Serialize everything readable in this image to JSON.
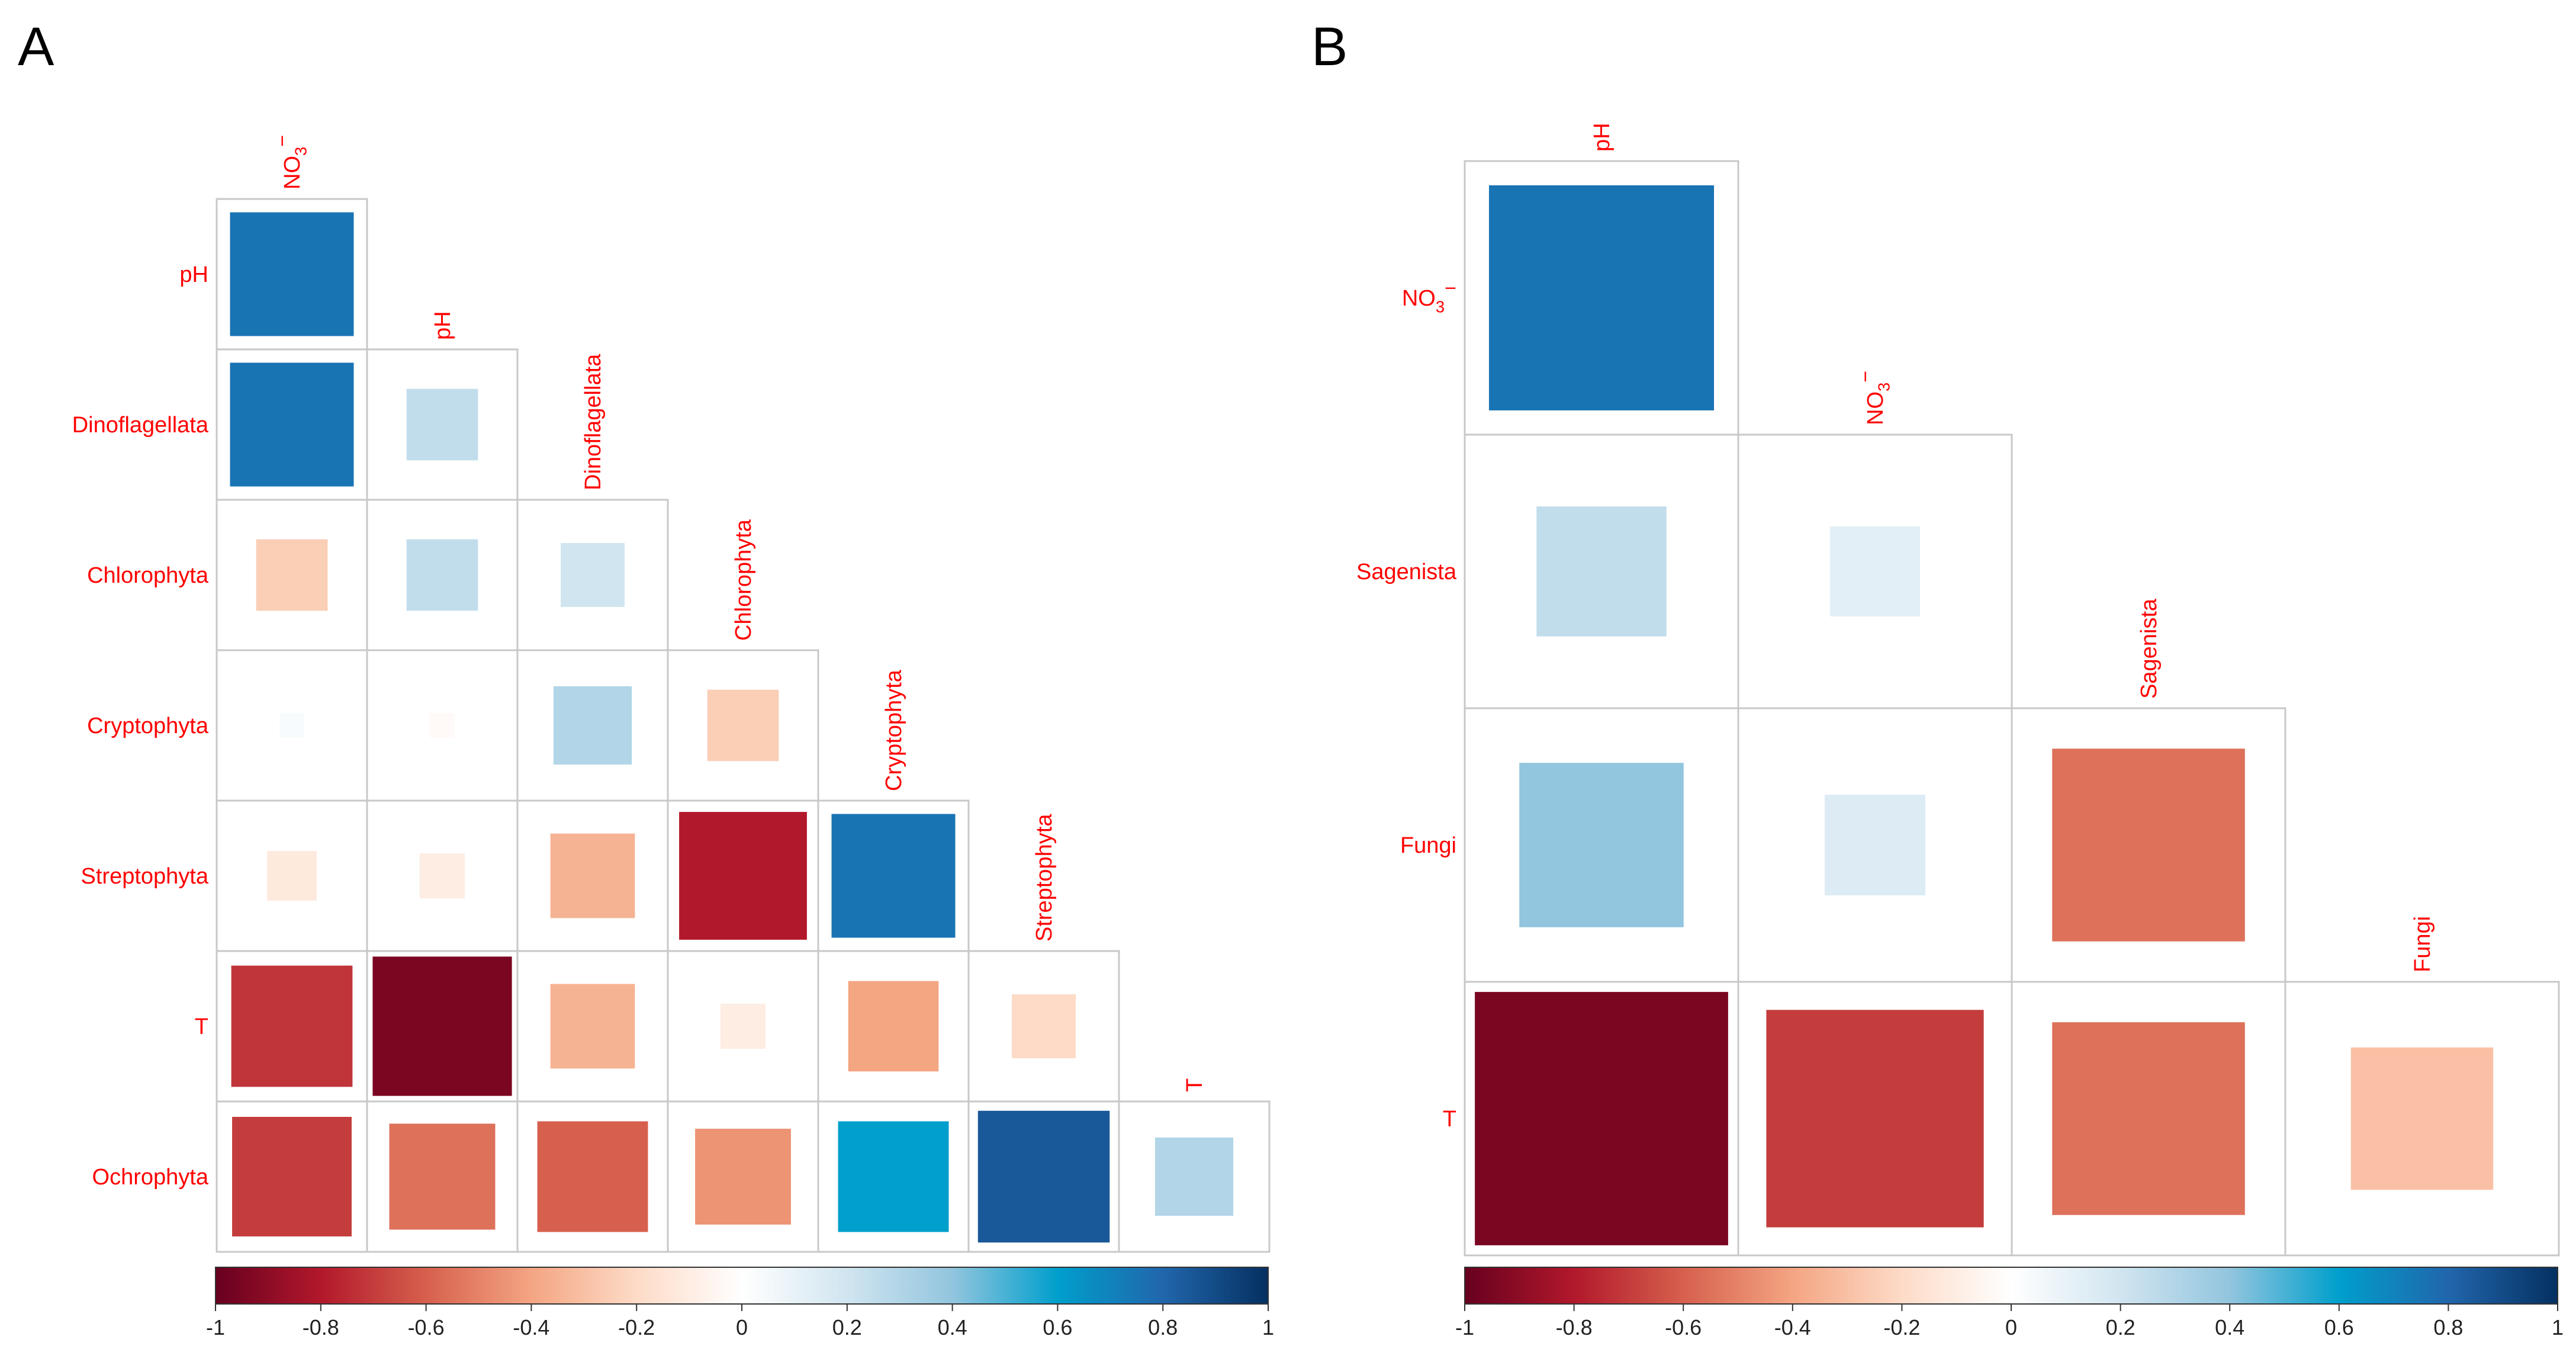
{
  "colorscale": {
    "min": -1,
    "max": 1,
    "ticks": [
      "-1",
      "-0.8",
      "-0.6",
      "-0.4",
      "-0.2",
      "0",
      "0.2",
      "0.4",
      "0.6",
      "0.8",
      "1"
    ],
    "stops": [
      {
        "v": -1,
        "c": "#67001f"
      },
      {
        "v": -0.8,
        "c": "#b2182b"
      },
      {
        "v": -0.6,
        "c": "#d6604d"
      },
      {
        "v": -0.4,
        "c": "#f4a582"
      },
      {
        "v": -0.2,
        "c": "#fddbc7"
      },
      {
        "v": 0,
        "c": "#ffffff"
      },
      {
        "v": 0.2,
        "c": "#d1e5f0"
      },
      {
        "v": 0.4,
        "c": "#92c5de"
      },
      {
        "v": 0.6,
        "c": "#009fcc"
      },
      {
        "v": 0.8,
        "c": "#2166ac"
      },
      {
        "v": 1,
        "c": "#053061"
      }
    ]
  },
  "chart_data": [
    {
      "type": "heatmap",
      "panel": "A",
      "variables": [
        "NO3-",
        "pH",
        "Dinoflagellata",
        "Chlorophyta",
        "Cryptophyta",
        "Streptophyta",
        "T",
        "Ochrophyta"
      ],
      "row_labels": [
        "pH",
        "Dinoflagellata",
        "Chlorophyta",
        "Cryptophyta",
        "Streptophyta",
        "T",
        "Ochrophyta"
      ],
      "column_labels": [
        "NO3-",
        "pH",
        "Dinoflagellata",
        "Chlorophyta",
        "Cryptophyta",
        "Streptophyta",
        "T"
      ],
      "matrix": [
        [
          0.75
        ],
        [
          0.75,
          0.25
        ],
        [
          -0.25,
          0.25,
          0.2
        ],
        [
          0.03,
          -0.03,
          0.3,
          -0.25
        ],
        [
          -0.12,
          -0.1,
          -0.35,
          -0.8,
          0.75
        ],
        [
          -0.72,
          -0.95,
          -0.35,
          -0.1,
          -0.4,
          -0.2
        ],
        [
          -0.7,
          -0.55,
          -0.6,
          -0.45,
          0.6,
          0.85,
          0.3
        ]
      ]
    },
    {
      "type": "heatmap",
      "panel": "B",
      "variables": [
        "pH",
        "NO3-",
        "Sagenista",
        "Fungi",
        "T"
      ],
      "row_labels": [
        "NO3-",
        "Sagenista",
        "Fungi",
        "T"
      ],
      "column_labels": [
        "pH",
        "NO3-",
        "Sagenista",
        "Fungi"
      ],
      "matrix": [
        [
          0.75
        ],
        [
          0.25,
          0.12
        ],
        [
          0.4,
          0.15,
          -0.55
        ],
        [
          -0.95,
          -0.7,
          -0.55,
          -0.3
        ]
      ]
    }
  ]
}
